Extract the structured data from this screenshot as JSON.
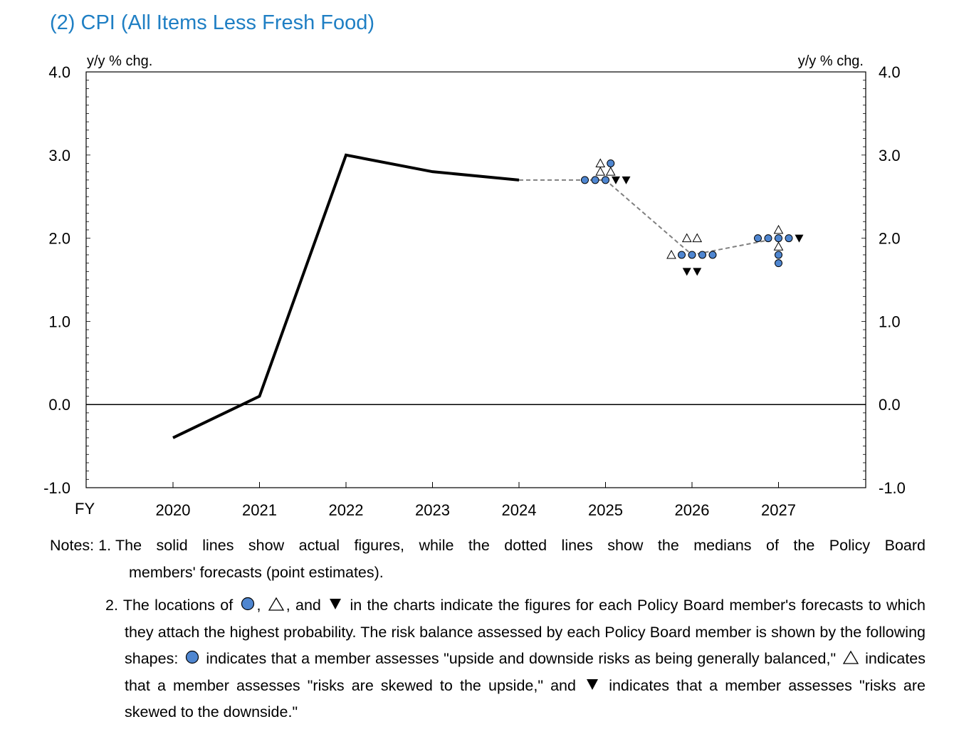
{
  "title": "(2) CPI (All Items Less Fresh Food)",
  "chart_data": {
    "type": "line",
    "y_unit_left": "y/y % chg.",
    "y_unit_right": "y/y % chg.",
    "x_axis_label": "FY",
    "ylim": [
      -1.0,
      4.0
    ],
    "y_ticks": [
      "4.0",
      "3.0",
      "2.0",
      "1.0",
      "0.0",
      "-1.0"
    ],
    "x_ticks": [
      "2020",
      "2021",
      "2022",
      "2023",
      "2024",
      "2025",
      "2026",
      "2027"
    ],
    "actual": {
      "x": [
        "2020",
        "2021",
        "2022",
        "2023",
        "2024"
      ],
      "values": [
        -0.4,
        0.1,
        3.0,
        2.8,
        2.7
      ]
    },
    "median_forecast": {
      "x": [
        "2024",
        "2025",
        "2026",
        "2027"
      ],
      "values": [
        2.7,
        2.7,
        1.8,
        2.0
      ]
    },
    "member_forecasts": [
      {
        "year": "2025",
        "value": 2.9,
        "shapes": [
          "upside",
          "balanced"
        ]
      },
      {
        "year": "2025",
        "value": 2.8,
        "shapes": [
          "upside",
          "upside"
        ]
      },
      {
        "year": "2025",
        "value": 2.7,
        "shapes": [
          "balanced",
          "balanced",
          "balanced",
          "downside",
          "downside"
        ]
      },
      {
        "year": "2026",
        "value": 2.0,
        "shapes": [
          "upside",
          "upside"
        ]
      },
      {
        "year": "2026",
        "value": 1.8,
        "shapes": [
          "upside",
          "balanced",
          "balanced",
          "balanced",
          "balanced"
        ]
      },
      {
        "year": "2026",
        "value": 1.6,
        "shapes": [
          "downside",
          "downside"
        ]
      },
      {
        "year": "2027",
        "value": 2.1,
        "shapes": [
          "upside"
        ]
      },
      {
        "year": "2027",
        "value": 2.0,
        "shapes": [
          "balanced",
          "balanced",
          "balanced",
          "balanced",
          "downside"
        ]
      },
      {
        "year": "2027",
        "value": 1.9,
        "shapes": [
          "upside"
        ]
      },
      {
        "year": "2027",
        "value": 1.8,
        "shapes": [
          "balanced"
        ]
      },
      {
        "year": "2027",
        "value": 1.7,
        "shapes": [
          "balanced"
        ]
      }
    ],
    "colors": {
      "actual": "#000000",
      "median": "#808080",
      "balanced_fill": "#4f86d0",
      "title": "#1f7fc4"
    },
    "legend_shapes": {
      "balanced": "circle",
      "upside": "triangle-up-outline",
      "downside": "triangle-down-filled"
    }
  },
  "notes": {
    "note1_label": "Notes: 1. ",
    "note1_line1": "The solid lines show actual figures, while the dotted lines show the medians of the Policy Board",
    "note1_line2": "members' forecasts (point estimates).",
    "note2_num": "2. ",
    "note2_a": "The locations of",
    "note2_b": ",",
    "note2_c": ", and",
    "note2_d": "in the charts indicate the figures for each Policy Board member's forecasts to which they attach the highest probability. The risk balance assessed by each Policy Board member is shown by the following shapes:",
    "note2_e": "indicates that a member assesses \"upside and downside risks as being generally balanced,\"",
    "note2_f": "indicates that a member assesses \"risks are skewed to the upside,\" and",
    "note2_g": "indicates that a member assesses \"risks are skewed to the downside.\""
  }
}
